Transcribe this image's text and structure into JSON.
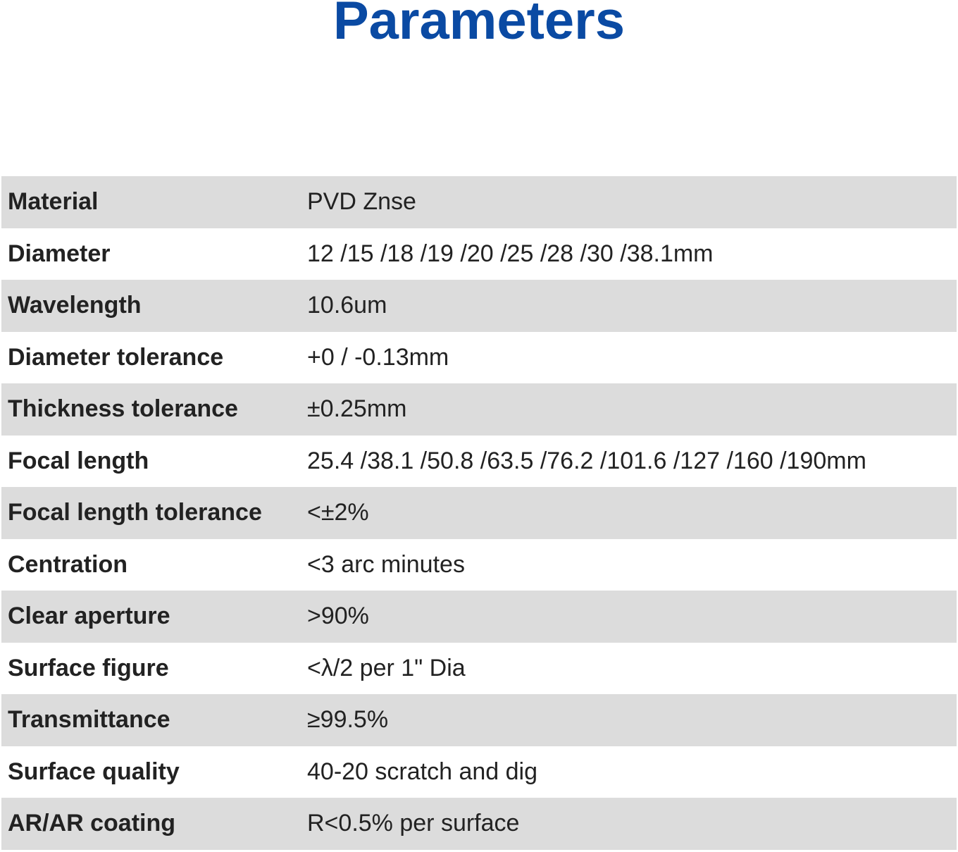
{
  "header": {
    "title": "Parameters"
  },
  "table": {
    "rows": [
      [
        "Material",
        "PVD Znse"
      ],
      [
        "Diameter",
        "12 /15 /18 /19 /20 /25 /28 /30 /38.1mm"
      ],
      [
        "Wavelength",
        "10.6um"
      ],
      [
        "Diameter tolerance",
        "+0 / -0.13mm"
      ],
      [
        "Thickness tolerance",
        "±0.25mm"
      ],
      [
        "Focal length",
        "25.4 /38.1 /50.8 /63.5 /76.2 /101.6 /127 /160 /190mm"
      ],
      [
        "Focal length tolerance",
        "<±2%"
      ],
      [
        "Centration",
        "<3 arc minutes"
      ],
      [
        "Clear aperture",
        ">90%"
      ],
      [
        "Surface figure",
        "<λ/2 per 1\" Dia"
      ],
      [
        "Transmittance",
        "≥99.5%"
      ],
      [
        "Surface quality",
        "40-20 scratch and dig"
      ],
      [
        "AR/AR coating",
        "R<0.5% per surface"
      ]
    ]
  }
}
